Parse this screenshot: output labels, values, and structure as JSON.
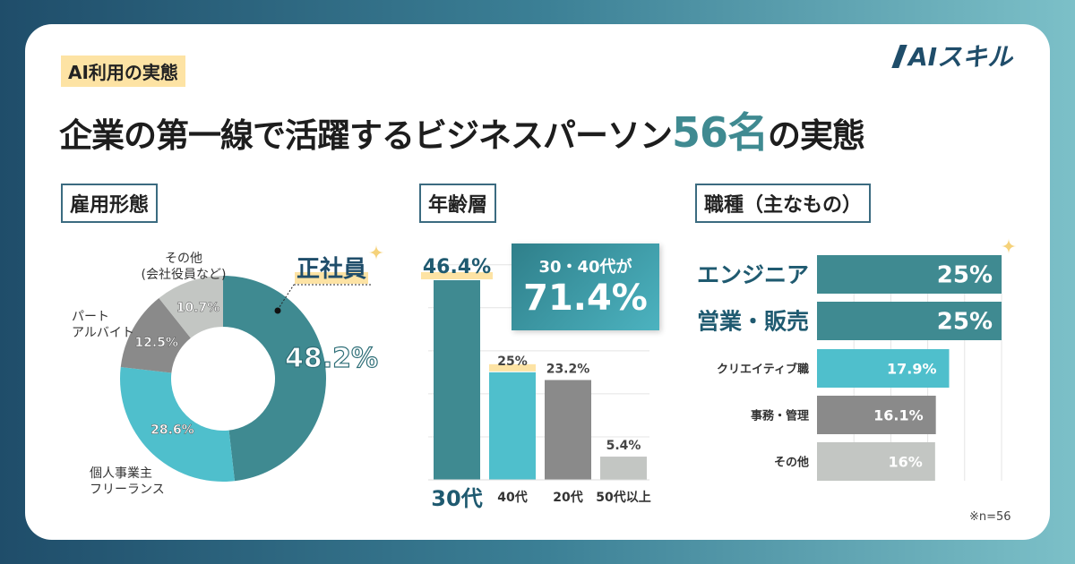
{
  "tag": "AI利用の実態",
  "title": {
    "before": "企業の第一線で活躍するビジネスパーソン",
    "highlight": "56名",
    "after": "の実態"
  },
  "logo": "AIスキル",
  "colors": {
    "dark_teal": "#3f8a91",
    "cyan": "#4fbfcc",
    "gray": "#8a8a8a",
    "light_gray": "#c3c6c3",
    "highlight_yellow": "#fde3a4",
    "navy": "#1f4d6a"
  },
  "callout": {
    "line1": "30・40代が",
    "line2": "71.4%"
  },
  "note": "※n=56",
  "chart_data": [
    {
      "type": "pie",
      "donut": true,
      "title": "雇用形態",
      "labels": [
        "正社員",
        "個人事業主 フリーランス",
        "パート アルバイト",
        "その他 (会社役員など)"
      ],
      "values": [
        48.2,
        28.6,
        12.5,
        10.7
      ],
      "value_labels": [
        "48.2%",
        "28.6%",
        "12.5%",
        "10.7%"
      ],
      "colors": [
        "#3f8a91",
        "#4fbfcc",
        "#8a8a8a",
        "#c3c6c3"
      ]
    },
    {
      "type": "bar",
      "title": "年齢層",
      "categories": [
        "30代",
        "40代",
        "20代",
        "50代以上"
      ],
      "values": [
        46.4,
        25,
        23.2,
        5.4
      ],
      "value_labels": [
        "46.4%",
        "25%",
        "23.2%",
        "5.4%"
      ],
      "ylim": [
        0,
        50
      ],
      "grid": true,
      "colors": [
        "#3f8a91",
        "#4fbfcc",
        "#8a8a8a",
        "#c3c6c3"
      ]
    },
    {
      "type": "bar",
      "orientation": "horizontal",
      "title": "職種（主なもの）",
      "categories": [
        "エンジニア",
        "営業・販売",
        "クリエイティブ職",
        "事務・管理",
        "その他"
      ],
      "values": [
        25,
        25,
        17.9,
        16.1,
        16
      ],
      "value_labels": [
        "25%",
        "25%",
        "17.9%",
        "16.1%",
        "16%"
      ],
      "xlim": [
        0,
        25
      ],
      "grid": true,
      "colors": [
        "#3f8a91",
        "#3f8a91",
        "#4fbfcc",
        "#8a8a8a",
        "#c3c6c3"
      ]
    }
  ]
}
